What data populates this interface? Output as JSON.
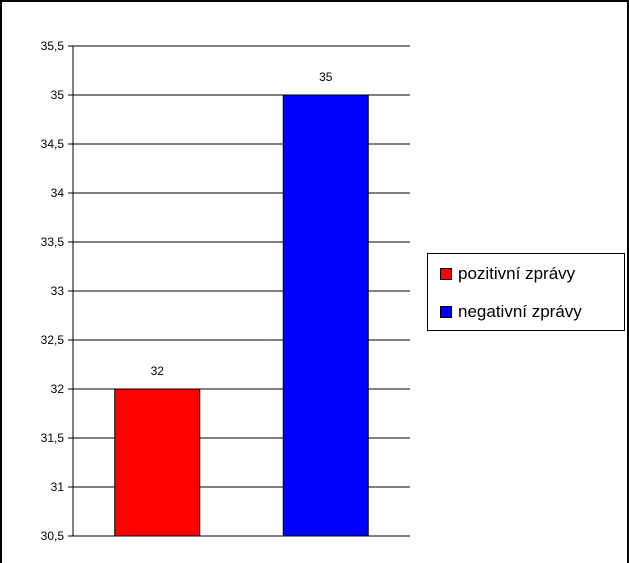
{
  "chart_data": {
    "type": "bar",
    "categories": [
      "pozitivní zprávy",
      "negativní zprávy"
    ],
    "values": [
      32,
      35
    ],
    "data_labels": [
      "32",
      "35"
    ],
    "colors": [
      "#ff0000",
      "#0000ff"
    ],
    "ylim": [
      30.5,
      35.5
    ],
    "y_ticks": [
      30.5,
      31,
      31.5,
      32,
      32.5,
      33,
      33.5,
      34,
      34.5,
      35,
      35.5
    ],
    "y_tick_labels": [
      "30,5",
      "31",
      "31,5",
      "32",
      "32,5",
      "33",
      "33,5",
      "34",
      "34,5",
      "35",
      "35,5"
    ],
    "grid": true,
    "legend": {
      "position": "right",
      "entries": [
        {
          "label": "pozitivní zprávy",
          "color": "#ff0000"
        },
        {
          "label": "negativní zprávy",
          "color": "#0000ff"
        }
      ]
    },
    "title": "",
    "xlabel": "",
    "ylabel": ""
  }
}
